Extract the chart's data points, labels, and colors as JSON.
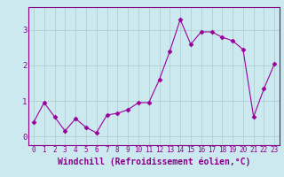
{
  "xlabel": "Windchill (Refroidissement éolien,°C)",
  "x_values": [
    0,
    1,
    2,
    3,
    4,
    5,
    6,
    7,
    8,
    9,
    10,
    11,
    12,
    13,
    14,
    15,
    16,
    17,
    18,
    19,
    20,
    21,
    22,
    23
  ],
  "y_values": [
    0.4,
    0.95,
    0.55,
    0.15,
    0.5,
    0.25,
    0.1,
    0.6,
    0.65,
    0.75,
    0.95,
    0.95,
    1.6,
    2.4,
    3.3,
    2.6,
    2.95,
    2.95,
    2.8,
    2.7,
    2.45,
    0.55,
    1.35,
    2.05
  ],
  "line_color": "#990099",
  "marker": "D",
  "marker_size": 2.5,
  "background_color": "#cce9f0",
  "grid_color": "#aacccc",
  "ylim": [
    -0.25,
    3.65
  ],
  "xlim": [
    -0.5,
    23.5
  ],
  "yticks": [
    0,
    1,
    2,
    3
  ],
  "xticks": [
    0,
    1,
    2,
    3,
    4,
    5,
    6,
    7,
    8,
    9,
    10,
    11,
    12,
    13,
    14,
    15,
    16,
    17,
    18,
    19,
    20,
    21,
    22,
    23
  ],
  "tick_fontsize": 5.5,
  "xlabel_fontsize": 7.0,
  "label_color": "#880088"
}
